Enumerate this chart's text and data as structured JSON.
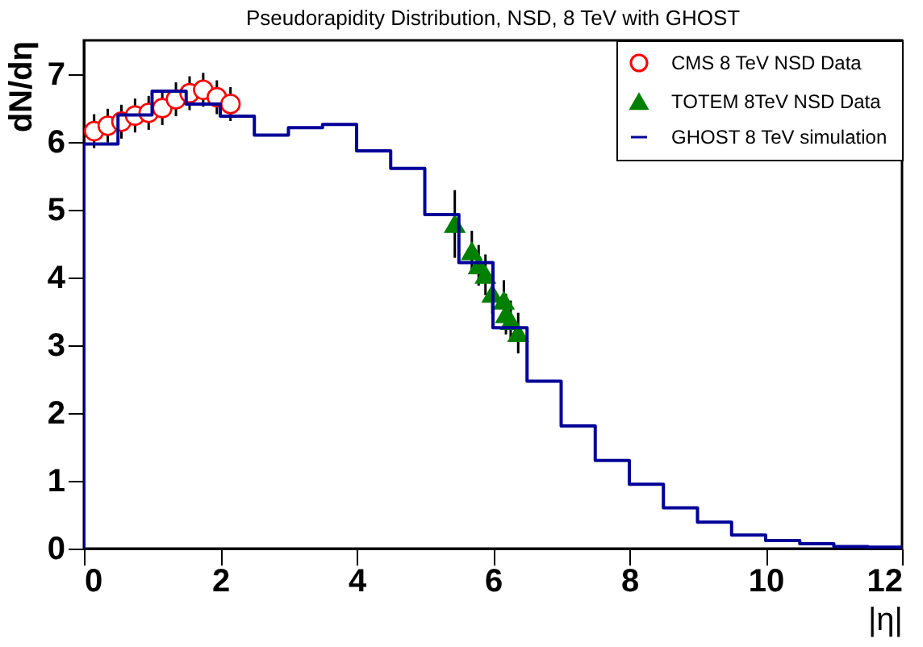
{
  "chart_data": {
    "type": "scatter",
    "title": "Pseudorapidity Distribution, NSD, 8 TeV with GHOST",
    "xlabel": "|η|",
    "ylabel": "dN/dη",
    "xlim": [
      0,
      12
    ],
    "xticks": [
      0,
      2,
      4,
      6,
      8,
      10,
      12
    ],
    "ylim": [
      0,
      7.5
    ],
    "yticks": [
      0,
      1,
      2,
      3,
      4,
      5,
      6,
      7
    ],
    "legend": "top right",
    "series": [
      {
        "name": "CMS 8 TeV NSD Data",
        "marker": "circle",
        "color": "#ff0000",
        "x": [
          0.15,
          0.35,
          0.55,
          0.75,
          0.95,
          1.15,
          1.35,
          1.55,
          1.75,
          1.95,
          2.15
        ],
        "values": [
          6.16,
          6.24,
          6.3,
          6.39,
          6.43,
          6.5,
          6.63,
          6.72,
          6.77,
          6.66,
          6.56
        ],
        "errors": [
          0.25,
          0.25,
          0.25,
          0.25,
          0.25,
          0.25,
          0.25,
          0.25,
          0.25,
          0.25,
          0.25
        ]
      },
      {
        "name": "TOTEM 8TeV NSD Data",
        "marker": "triangle",
        "color": "#008000",
        "x": [
          5.44,
          5.69,
          5.79,
          5.89,
          5.99,
          6.16,
          6.19,
          6.26,
          6.37
        ],
        "values": [
          4.79,
          4.39,
          4.18,
          4.04,
          3.76,
          3.66,
          3.46,
          3.36,
          3.18
        ],
        "errors": [
          0.5,
          0.3,
          0.3,
          0.3,
          0.3,
          0.3,
          0.3,
          0.3,
          0.3
        ]
      },
      {
        "name": "GHOST 8 TeV simulation",
        "type": "histogram",
        "color": "#000099",
        "bins": [
          0,
          0.5,
          1,
          1.5,
          2,
          2.5,
          3,
          3.5,
          4,
          4.5,
          5,
          5.5,
          6,
          6.5,
          7,
          7.5,
          8,
          8.5,
          9,
          9.5,
          10,
          10.5,
          11,
          11.5,
          12
        ],
        "values": [
          5.97,
          6.4,
          6.75,
          6.56,
          6.38,
          6.1,
          6.21,
          6.26,
          5.87,
          5.61,
          4.93,
          4.22,
          3.26,
          2.47,
          1.81,
          1.3,
          0.95,
          0.6,
          0.39,
          0.2,
          0.12,
          0.07,
          0.03,
          0.02
        ]
      }
    ]
  }
}
